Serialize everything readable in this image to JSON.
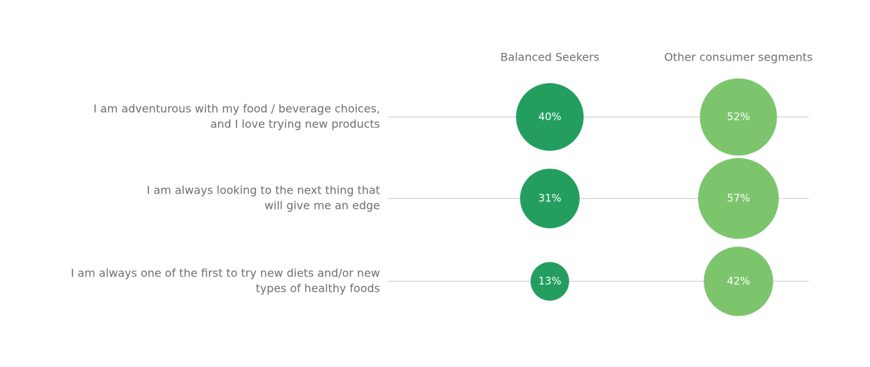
{
  "chart_data": {
    "type": "bubble",
    "columns": [
      {
        "name": "Balanced Seekers",
        "color": "#239e5f"
      },
      {
        "name": "Other consumer segments",
        "color": "#7cc56d"
      }
    ],
    "rows": [
      {
        "label_lines": [
          "I am adventurous with my food / beverage choices,",
          "and I love trying new products"
        ],
        "values": [
          40,
          52
        ],
        "labels": [
          "40%",
          "52%"
        ]
      },
      {
        "label_lines": [
          "I am always looking to the next thing that",
          "will give me an edge"
        ],
        "values": [
          31,
          57
        ],
        "labels": [
          "31%",
          "57%"
        ]
      },
      {
        "label_lines": [
          "I am always one of the first to try new diets and/or new",
          "types of healthy foods"
        ],
        "values": [
          13,
          42
        ],
        "labels": [
          "13%",
          "42%"
        ]
      }
    ]
  }
}
